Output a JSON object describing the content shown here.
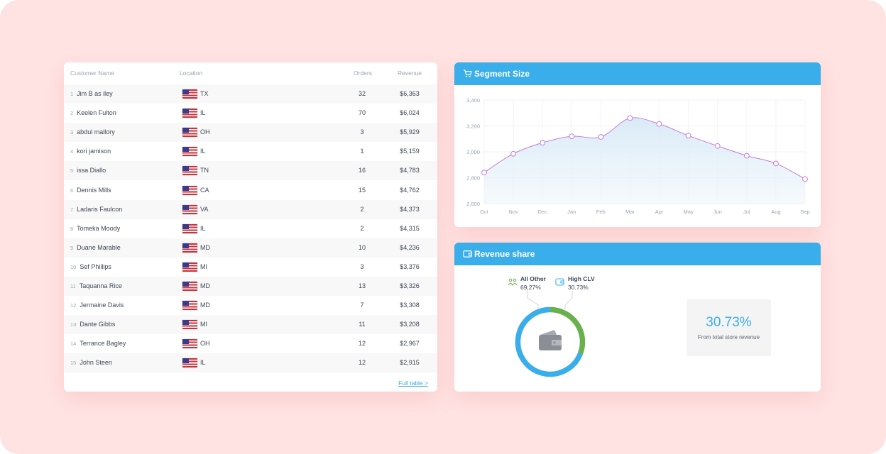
{
  "table": {
    "headers": {
      "name": "Customer Name",
      "location": "Location",
      "orders": "Orders",
      "revenue": "Revenue"
    },
    "rows": [
      {
        "n": "1",
        "name": "Jim B as iley",
        "state": "TX",
        "orders": "32",
        "revenue": "$6,363"
      },
      {
        "n": "2",
        "name": "Keelen Fulton",
        "state": "IL",
        "orders": "70",
        "revenue": "$6,024"
      },
      {
        "n": "3",
        "name": "abdul mallory",
        "state": "OH",
        "orders": "3",
        "revenue": "$5,929"
      },
      {
        "n": "4",
        "name": "kori jamison",
        "state": "IL",
        "orders": "1",
        "revenue": "$5,159"
      },
      {
        "n": "5",
        "name": "issa Diallo",
        "state": "TN",
        "orders": "16",
        "revenue": "$4,783"
      },
      {
        "n": "6",
        "name": "Dennis Mills",
        "state": "CA",
        "orders": "15",
        "revenue": "$4,762"
      },
      {
        "n": "7",
        "name": "Ladaris Faulcon",
        "state": "VA",
        "orders": "2",
        "revenue": "$4,373"
      },
      {
        "n": "8",
        "name": "Tomeka Moody",
        "state": "IL",
        "orders": "2",
        "revenue": "$4,315"
      },
      {
        "n": "9",
        "name": "Duane Marable",
        "state": "MD",
        "orders": "10",
        "revenue": "$4,236"
      },
      {
        "n": "10",
        "name": "Sef Phillips",
        "state": "MI",
        "orders": "3",
        "revenue": "$3,376"
      },
      {
        "n": "11",
        "name": "Taquanna Rice",
        "state": "MD",
        "orders": "13",
        "revenue": "$3,326"
      },
      {
        "n": "12",
        "name": "Jermaine Davis",
        "state": "MD",
        "orders": "7",
        "revenue": "$3,308"
      },
      {
        "n": "13",
        "name": "Dante Gibbs",
        "state": "MI",
        "orders": "11",
        "revenue": "$3,208"
      },
      {
        "n": "14",
        "name": "Terrance Bagley",
        "state": "OH",
        "orders": "12",
        "revenue": "$2,967"
      },
      {
        "n": "15",
        "name": "John Steen",
        "state": "IL",
        "orders": "12",
        "revenue": "$2,915"
      }
    ],
    "full_link": "Full table >"
  },
  "segment": {
    "title": "Segment Size",
    "icon": "cart-icon",
    "accent": "#3aaeea",
    "line_color": "#c77ad8"
  },
  "revenue_share": {
    "title": "Revenue share",
    "icon": "wallet-icon",
    "all_other": {
      "label": "All Other",
      "value": "69.27%",
      "share": 69.27,
      "color": "#3aaeea",
      "icon": "people-icon"
    },
    "high_clv": {
      "label": "High CLV",
      "value": "30.73%",
      "share": 30.73,
      "color": "#6ab04c",
      "icon": "wallet-icon"
    },
    "stat_value": "30.73%",
    "stat_caption": "From total store revenue"
  },
  "chart_data": {
    "type": "area",
    "categories": [
      "Oct",
      "Nov",
      "Dec",
      "Jan",
      "Feb",
      "Mar",
      "Apr",
      "May",
      "Jun",
      "Jul",
      "Aug",
      "Sep"
    ],
    "values": [
      2840,
      2985,
      3070,
      3120,
      3115,
      3260,
      3215,
      3125,
      3045,
      2970,
      2910,
      2790
    ],
    "yticks": [
      "2,600",
      "2,800",
      "3,000",
      "3,200",
      "3,400"
    ],
    "ylim": [
      2600,
      3400
    ],
    "grid": true
  }
}
